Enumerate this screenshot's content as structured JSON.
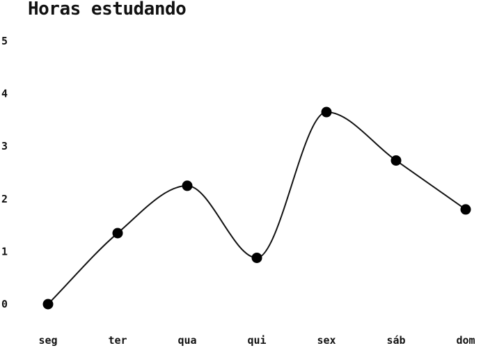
{
  "chart_data": {
    "type": "line",
    "title": "Horas estudando",
    "xlabel": "",
    "ylabel": "",
    "categories": [
      "seg",
      "ter",
      "qua",
      "qui",
      "sex",
      "sáb",
      "dom"
    ],
    "series": [
      {
        "values": [
          0,
          1.35,
          2.25,
          0.88,
          3.65,
          2.73,
          1.8
        ]
      }
    ],
    "ylim": [
      0,
      5
    ],
    "yticks": [
      0,
      1,
      2,
      3,
      4,
      5
    ],
    "grid": false,
    "smooth": true,
    "line_color": "#111111",
    "marker_color": "#000000"
  }
}
